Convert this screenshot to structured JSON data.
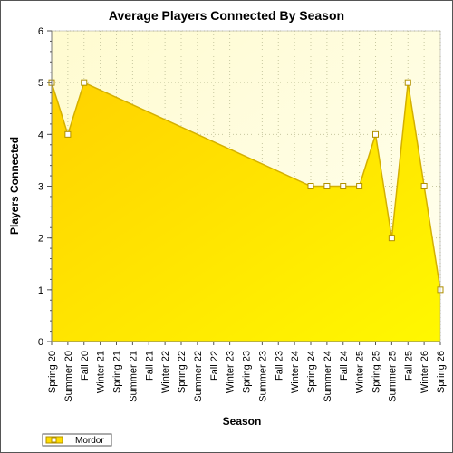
{
  "chart_data": {
    "type": "area",
    "title": "Average Players Connected By Season",
    "xlabel": "Season",
    "ylabel": "Players Connected",
    "ylim": [
      0,
      6
    ],
    "yticks": [
      0,
      1,
      2,
      3,
      4,
      5,
      6
    ],
    "grid": true,
    "legend": "bottom-left",
    "categories": [
      "Spring 20",
      "Summer 20",
      "Fall 20",
      "Winter 21",
      "Spring 21",
      "Summer 21",
      "Fall 21",
      "Winter 22",
      "Spring 22",
      "Summer 22",
      "Fall 22",
      "Winter 23",
      "Spring 23",
      "Summer 23",
      "Fall 23",
      "Winter 24",
      "Spring 24",
      "Summer 24",
      "Fall 24",
      "Winter 25",
      "Spring 25",
      "Summer 25",
      "Fall 25",
      "Winter 26",
      "Spring 26"
    ],
    "series": [
      {
        "name": "Mordor",
        "color": "#ffdd00",
        "points": [
          {
            "category": "Spring 20",
            "value": 5
          },
          {
            "category": "Summer 20",
            "value": 4
          },
          {
            "category": "Fall 20",
            "value": 5
          },
          {
            "category": "Spring 24",
            "value": 3
          },
          {
            "category": "Summer 24",
            "value": 3
          },
          {
            "category": "Fall 24",
            "value": 3
          },
          {
            "category": "Winter 25",
            "value": 3
          },
          {
            "category": "Spring 25",
            "value": 4
          },
          {
            "category": "Summer 25",
            "value": 2
          },
          {
            "category": "Fall 25",
            "value": 5
          },
          {
            "category": "Winter 26",
            "value": 3
          },
          {
            "category": "Spring 26",
            "value": 1
          }
        ]
      }
    ]
  }
}
